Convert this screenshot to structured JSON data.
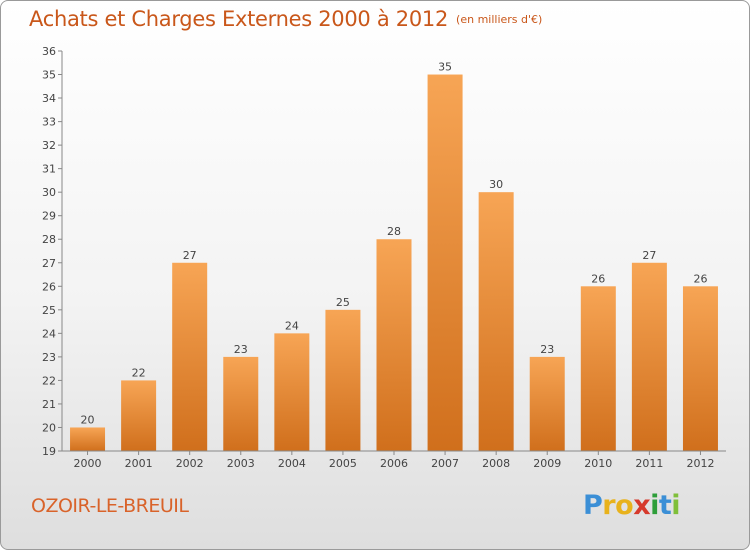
{
  "title": "Achats et Charges Externes 2000 à 2012",
  "subtitle": "(en milliers d'€)",
  "location": "OZOIR-LE-BREUIL",
  "logo": {
    "letters": [
      {
        "ch": "P",
        "color": "#3b8fd6"
      },
      {
        "ch": "r",
        "color": "#e8b21c"
      },
      {
        "ch": "o",
        "color": "#e8b21c"
      },
      {
        "ch": "x",
        "color": "#d63a2c"
      },
      {
        "ch": "i",
        "color": "#2e9e3a"
      },
      {
        "ch": "t",
        "color": "#3b8fd6"
      },
      {
        "ch": "i",
        "color": "#7fbf3a"
      }
    ]
  },
  "colors": {
    "bar_light": "#f7a555",
    "bar_dark": "#d06f1c",
    "title": "#c9571a"
  },
  "chart_data": {
    "type": "bar",
    "categories": [
      "2000",
      "2001",
      "2002",
      "2003",
      "2004",
      "2005",
      "2006",
      "2007",
      "2008",
      "2009",
      "2010",
      "2011",
      "2012"
    ],
    "values": [
      20,
      22,
      27,
      23,
      24,
      25,
      28,
      35,
      30,
      23,
      26,
      27,
      26
    ],
    "ylim": [
      19,
      36
    ],
    "yticks": [
      19,
      20,
      21,
      22,
      23,
      24,
      25,
      26,
      27,
      28,
      29,
      30,
      31,
      32,
      33,
      34,
      35,
      36
    ],
    "grid": false,
    "data_labels": true
  }
}
